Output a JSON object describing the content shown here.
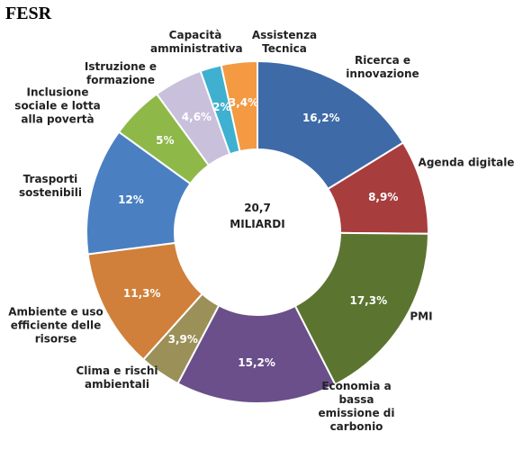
{
  "chart_data": {
    "type": "donut",
    "title": "FESR",
    "center_label": "20,7 MILIARDI",
    "categories": [
      "Ricerca e innovazione",
      "Agenda digitale",
      "PMI",
      "Economia a bassa emissione di carbonio",
      "Clima e rischi ambientali",
      "Ambiente e uso efficiente delle risorse",
      "Trasporti sostenibili",
      "Inclusione sociale e lotta alla povertà",
      "Istruzione e formazione",
      "Capacità amministrativa",
      "Assistenza Tecnica"
    ],
    "values": [
      16.2,
      8.9,
      17.3,
      15.2,
      3.9,
      11.3,
      12,
      5,
      4.6,
      2,
      3.4
    ],
    "value_labels": [
      "16,2%",
      "8,9%",
      "17,3%",
      "15,2%",
      "3,9%",
      "11,3%",
      "12%",
      "5%",
      "4,6%",
      "2%",
      "3,4%"
    ],
    "colors": [
      "#3e6aa8",
      "#a83d3d",
      "#5b7530",
      "#6a4f8a",
      "#9b9058",
      "#d0803a",
      "#4a7fc2",
      "#8eb848",
      "#c9c0dc",
      "#3fb0cf",
      "#f39a43"
    ]
  }
}
